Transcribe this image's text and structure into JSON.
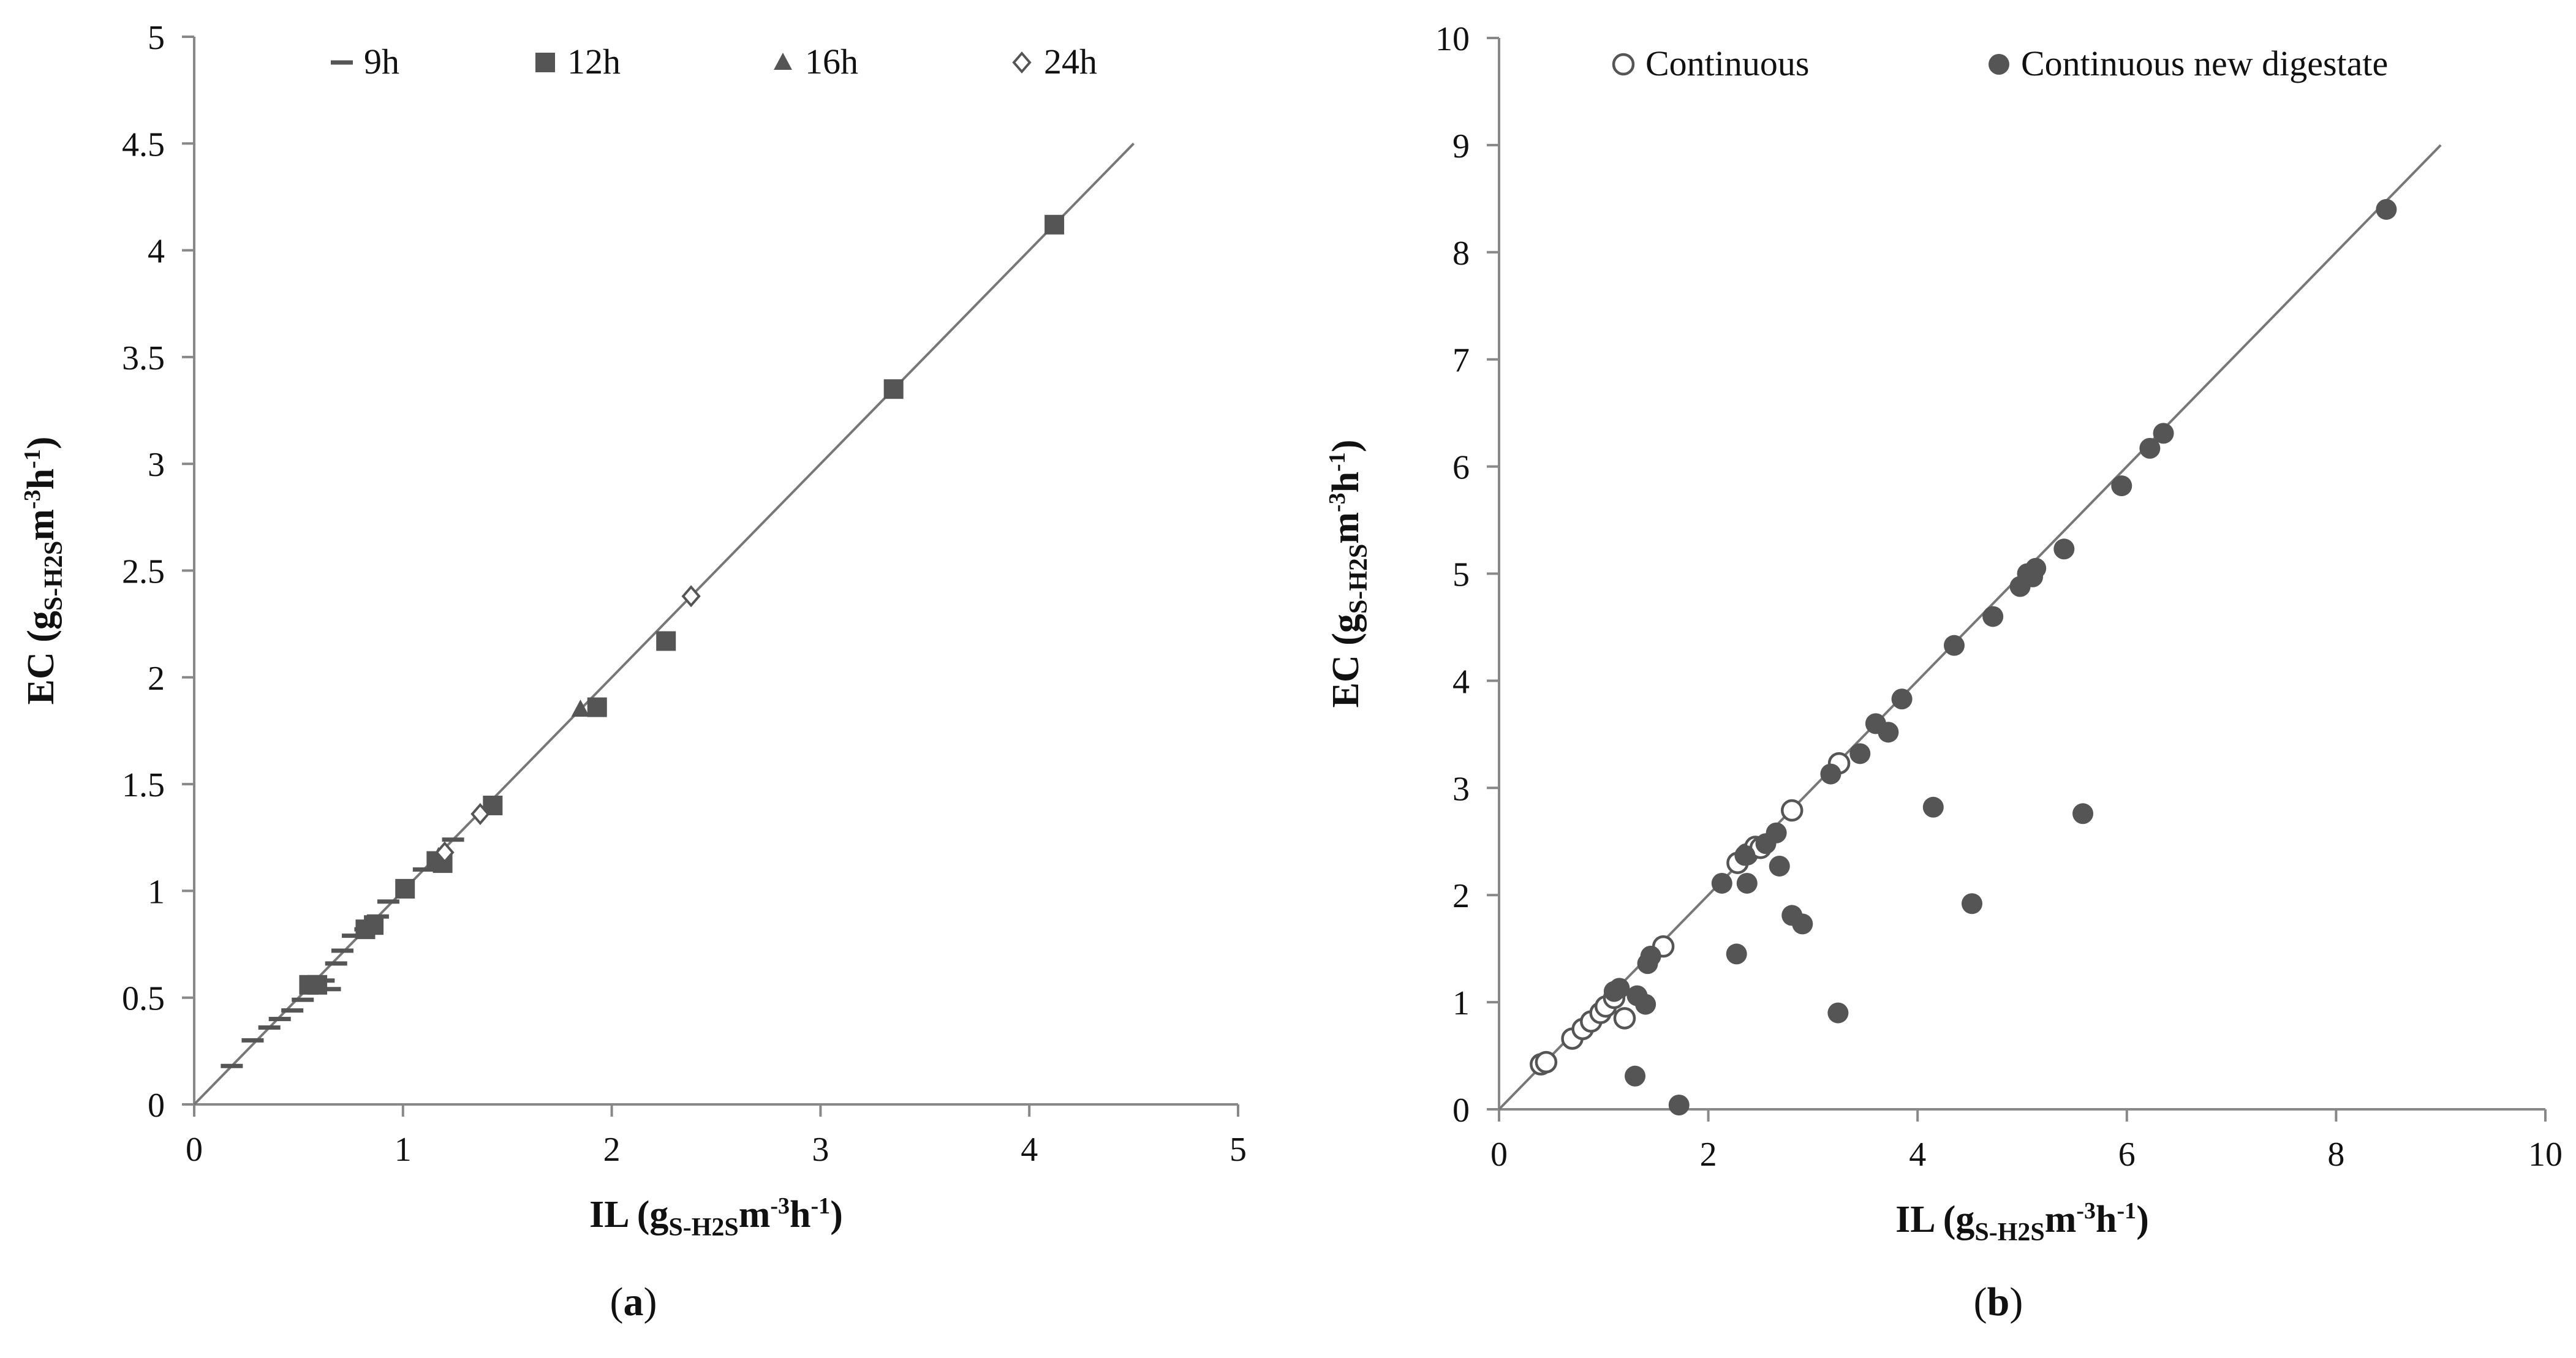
{
  "chart_data": [
    {
      "type": "scatter",
      "panel": "a",
      "caption_letter": "a",
      "xlim": [
        0,
        5
      ],
      "ylim": [
        0,
        5
      ],
      "xticks": [
        "0",
        "1",
        "2",
        "3",
        "4",
        "5"
      ],
      "yticks": [
        "0",
        "0.5",
        "1",
        "1.5",
        "2",
        "2.5",
        "3",
        "3.5",
        "4",
        "4.5",
        "5"
      ],
      "xlabel": {
        "main": "IL (g",
        "sub": "S-H2S",
        "rest": "m",
        "sup1": "-3",
        "mid": "h",
        "sup2": "-1",
        "end": ")"
      },
      "ylabel": {
        "main": "EC (g",
        "sub": "S-H2S",
        "rest": "m",
        "sup1": "-3",
        "mid": "h",
        "sup2": "-1",
        "end": ")"
      },
      "reference_line": {
        "x": [
          0,
          4.5
        ],
        "y": [
          0,
          4.5
        ]
      },
      "legend": [
        "9h",
        "12h",
        "16h",
        "24h"
      ],
      "series": [
        {
          "name": "9h",
          "marker": "dash",
          "color": "#555555",
          "x": [
            0.18,
            0.28,
            0.36,
            0.41,
            0.47,
            0.52,
            0.56,
            0.62,
            0.65,
            0.68,
            0.71,
            0.76,
            0.82,
            0.88,
            0.93,
            1.1,
            1.24
          ],
          "y": [
            0.18,
            0.3,
            0.36,
            0.4,
            0.44,
            0.49,
            0.53,
            0.58,
            0.54,
            0.66,
            0.72,
            0.79,
            0.82,
            0.88,
            0.95,
            1.1,
            1.24
          ]
        },
        {
          "name": "12h",
          "marker": "square",
          "color": "#555555",
          "x": [
            0.55,
            0.59,
            0.82,
            0.86,
            1.01,
            1.16,
            1.19,
            1.43,
            1.93,
            2.26,
            3.35,
            4.12
          ],
          "y": [
            0.56,
            0.56,
            0.82,
            0.84,
            1.01,
            1.14,
            1.13,
            1.4,
            1.86,
            2.17,
            3.35,
            4.12
          ]
        },
        {
          "name": "16h",
          "marker": "triangle",
          "color": "#555555",
          "x": [
            0.82,
            1.17,
            1.85
          ],
          "y": [
            0.83,
            1.16,
            1.85
          ]
        },
        {
          "name": "24h",
          "marker": "diamond",
          "color": "#555555",
          "x": [
            1.2,
            1.37,
            2.38
          ],
          "y": [
            1.18,
            1.36,
            2.38
          ]
        }
      ]
    },
    {
      "type": "scatter",
      "panel": "b",
      "caption_letter": "b",
      "xlim": [
        0,
        10
      ],
      "ylim": [
        0,
        10
      ],
      "xticks": [
        "0",
        "2",
        "4",
        "6",
        "8",
        "10"
      ],
      "yticks": [
        "0",
        "1",
        "2",
        "3",
        "4",
        "5",
        "6",
        "7",
        "8",
        "9",
        "10"
      ],
      "xlabel": {
        "main": "IL (g",
        "sub": "S-H2S",
        "rest": "m",
        "sup1": "-3",
        "mid": "h",
        "sup2": "-1",
        "end": ")"
      },
      "ylabel": {
        "main": "EC (g",
        "sub": "S-H2S",
        "rest": "m",
        "sup1": "-3",
        "mid": "h",
        "sup2": "-1",
        "end": ")"
      },
      "reference_line": {
        "x": [
          0,
          9
        ],
        "y": [
          0,
          9
        ]
      },
      "legend": [
        "Continuous",
        "Continuous new digestate"
      ],
      "series": [
        {
          "name": "Continuous",
          "marker": "open-circle",
          "color": "#555555",
          "x": [
            0.4,
            0.45,
            0.7,
            0.8,
            0.88,
            0.97,
            1.02,
            1.1,
            1.2,
            1.57,
            2.28,
            2.37,
            2.45,
            2.5,
            2.8,
            3.25
          ],
          "y": [
            0.42,
            0.44,
            0.66,
            0.75,
            0.82,
            0.9,
            0.96,
            1.04,
            0.85,
            1.52,
            2.3,
            2.38,
            2.45,
            2.44,
            2.79,
            3.23
          ]
        },
        {
          "name": "Continuous new digestate",
          "marker": "filled-circle",
          "color": "#555555",
          "x": [
            1.1,
            1.15,
            1.3,
            1.32,
            1.4,
            1.42,
            1.45,
            1.72,
            2.13,
            2.27,
            2.35,
            2.37,
            2.55,
            2.65,
            2.68,
            2.8,
            2.9,
            3.17,
            3.24,
            3.45,
            3.6,
            3.72,
            3.85,
            4.15,
            4.35,
            4.52,
            4.72,
            4.98,
            5.05,
            5.1,
            5.13,
            5.4,
            5.58,
            5.95,
            6.22,
            6.35,
            8.48
          ],
          "y": [
            1.1,
            1.13,
            0.31,
            1.06,
            0.98,
            1.36,
            1.43,
            0.04,
            2.11,
            1.45,
            2.37,
            2.11,
            2.48,
            2.58,
            2.27,
            1.81,
            1.73,
            3.13,
            0.9,
            3.32,
            3.6,
            3.52,
            3.83,
            2.82,
            4.33,
            1.92,
            4.6,
            4.88,
            5.0,
            4.97,
            5.05,
            5.23,
            2.76,
            5.82,
            6.17,
            6.31,
            8.4
          ]
        }
      ]
    }
  ]
}
